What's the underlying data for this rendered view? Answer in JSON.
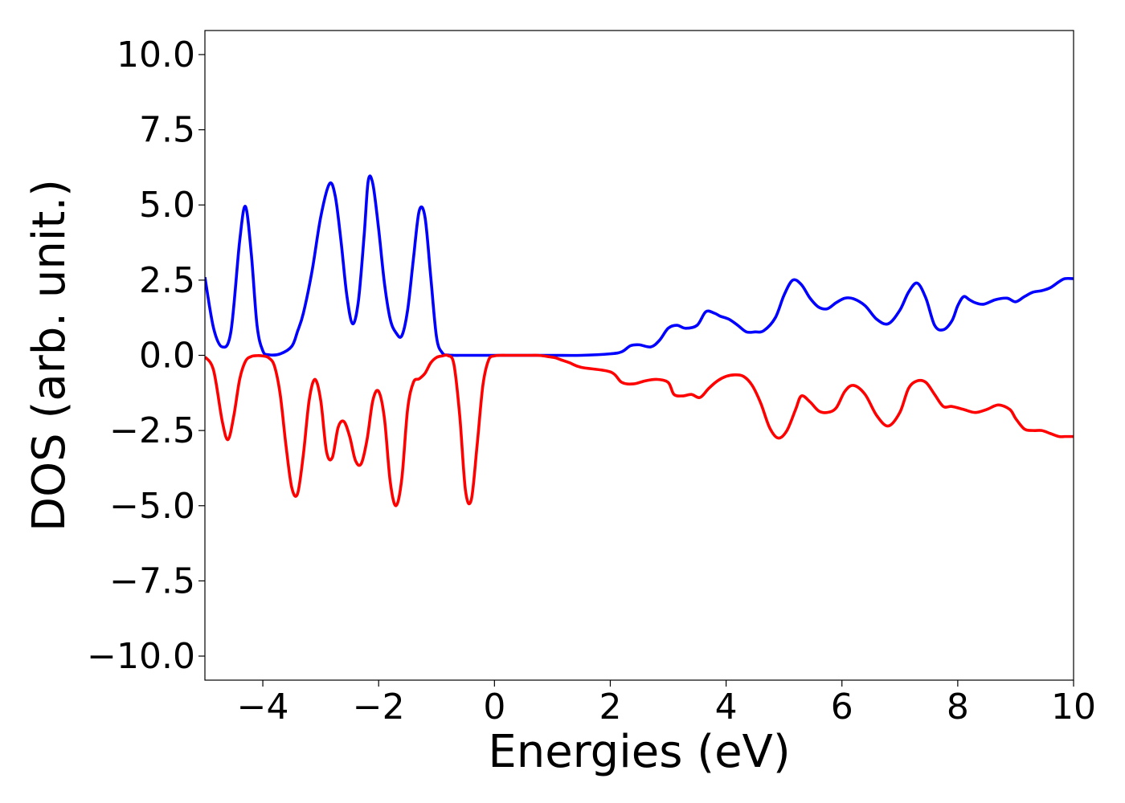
{
  "chart_data": {
    "type": "line",
    "title": "",
    "xlabel": "Energies (eV)",
    "ylabel": "DOS (arb. unit.)",
    "xlim": [
      -5,
      10
    ],
    "ylim": [
      -10.8,
      10.8
    ],
    "xticks": [
      -4,
      -2,
      0,
      2,
      4,
      6,
      8,
      10
    ],
    "xtick_labels": [
      "−4",
      "−2",
      "0",
      "2",
      "4",
      "6",
      "8",
      "10"
    ],
    "yticks": [
      10,
      7.5,
      5,
      2.5,
      0,
      -2.5,
      -5,
      -7.5,
      -10
    ],
    "ytick_labels": [
      "10.0",
      "7.5",
      "5.0",
      "2.5",
      "0.0",
      "−2.5",
      "−5.0",
      "−7.5",
      "−10.0"
    ],
    "grid": false,
    "legend": "none",
    "series": [
      {
        "color": "#0000ff",
        "x": [
          -5.0,
          -4.85,
          -4.7,
          -4.55,
          -4.4,
          -4.3,
          -4.2,
          -4.1,
          -4.0,
          -3.9,
          -3.7,
          -3.5,
          -3.4,
          -3.3,
          -3.15,
          -3.0,
          -2.85,
          -2.75,
          -2.65,
          -2.55,
          -2.45,
          -2.35,
          -2.25,
          -2.18,
          -2.1,
          -2.0,
          -1.9,
          -1.8,
          -1.7,
          -1.6,
          -1.5,
          -1.4,
          -1.3,
          -1.2,
          -1.1,
          -1.0,
          -0.9,
          -0.8,
          -0.7,
          -0.6,
          -0.5,
          -0.4,
          -0.3,
          -0.2,
          0.0,
          0.5,
          1.0,
          1.5,
          2.0,
          2.2,
          2.35,
          2.5,
          2.7,
          2.85,
          3.0,
          3.15,
          3.3,
          3.5,
          3.65,
          3.8,
          3.9,
          4.05,
          4.2,
          4.35,
          4.5,
          4.65,
          4.85,
          5.0,
          5.15,
          5.3,
          5.45,
          5.6,
          5.75,
          5.9,
          6.05,
          6.2,
          6.4,
          6.6,
          6.8,
          7.0,
          7.15,
          7.3,
          7.45,
          7.6,
          7.75,
          7.9,
          8.0,
          8.1,
          8.2,
          8.3,
          8.45,
          8.65,
          8.85,
          9.0,
          9.15,
          9.3,
          9.45,
          9.6,
          9.75,
          9.85,
          10.0
        ],
        "y": [
          2.6,
          0.9,
          0.28,
          0.8,
          3.8,
          4.95,
          3.4,
          1.0,
          0.15,
          0.02,
          0.05,
          0.3,
          0.8,
          1.4,
          2.8,
          4.6,
          5.7,
          5.3,
          3.8,
          2.0,
          1.05,
          1.8,
          4.0,
          5.8,
          5.7,
          4.2,
          2.4,
          1.2,
          0.75,
          0.65,
          1.5,
          3.2,
          4.8,
          4.6,
          2.6,
          0.6,
          0.08,
          0.01,
          0.0,
          0.0,
          0.0,
          0.0,
          0.0,
          0.0,
          0.0,
          0.0,
          0.0,
          0.0,
          0.05,
          0.12,
          0.32,
          0.35,
          0.28,
          0.5,
          0.9,
          1.0,
          0.9,
          1.0,
          1.45,
          1.4,
          1.3,
          1.2,
          1.0,
          0.78,
          0.78,
          0.82,
          1.25,
          2.0,
          2.5,
          2.35,
          1.9,
          1.6,
          1.55,
          1.75,
          1.9,
          1.88,
          1.65,
          1.2,
          1.05,
          1.5,
          2.1,
          2.4,
          1.9,
          1.0,
          0.85,
          1.15,
          1.65,
          1.95,
          1.85,
          1.75,
          1.7,
          1.85,
          1.9,
          1.78,
          1.95,
          2.1,
          2.15,
          2.25,
          2.45,
          2.55,
          2.55
        ]
      },
      {
        "color": "#ff0000",
        "x": [
          -5.0,
          -4.85,
          -4.7,
          -4.6,
          -4.5,
          -4.4,
          -4.3,
          -4.2,
          -4.1,
          -4.0,
          -3.9,
          -3.8,
          -3.7,
          -3.6,
          -3.5,
          -3.4,
          -3.3,
          -3.2,
          -3.1,
          -3.0,
          -2.9,
          -2.8,
          -2.7,
          -2.6,
          -2.5,
          -2.4,
          -2.3,
          -2.2,
          -2.1,
          -2.0,
          -1.9,
          -1.8,
          -1.7,
          -1.6,
          -1.5,
          -1.4,
          -1.3,
          -1.2,
          -1.1,
          -1.0,
          -0.9,
          -0.8,
          -0.7,
          -0.6,
          -0.5,
          -0.4,
          -0.3,
          -0.2,
          -0.1,
          0.0,
          0.1,
          0.2,
          0.3,
          0.4,
          0.5,
          0.6,
          0.65,
          0.75,
          0.85,
          0.95,
          1.05,
          1.15,
          1.3,
          1.5,
          2.0,
          2.2,
          2.4,
          2.6,
          2.8,
          3.0,
          3.1,
          3.25,
          3.4,
          3.55,
          3.7,
          3.85,
          4.0,
          4.15,
          4.3,
          4.45,
          4.6,
          4.75,
          4.9,
          5.05,
          5.2,
          5.3,
          5.45,
          5.6,
          5.75,
          5.9,
          6.05,
          6.2,
          6.4,
          6.6,
          6.8,
          7.0,
          7.15,
          7.3,
          7.45,
          7.6,
          7.75,
          7.9,
          8.1,
          8.3,
          8.5,
          8.7,
          8.9,
          9.0,
          9.15,
          9.3,
          9.45,
          9.6,
          9.75,
          9.85,
          10.0
        ],
        "y": [
          -0.05,
          -0.5,
          -2.2,
          -2.8,
          -2.0,
          -0.8,
          -0.2,
          -0.04,
          -0.01,
          -0.02,
          -0.08,
          -0.35,
          -1.3,
          -3.0,
          -4.4,
          -4.6,
          -3.3,
          -1.5,
          -0.8,
          -1.5,
          -3.2,
          -3.4,
          -2.4,
          -2.2,
          -2.7,
          -3.5,
          -3.6,
          -2.8,
          -1.5,
          -1.2,
          -2.1,
          -4.2,
          -5.0,
          -4.1,
          -1.8,
          -0.9,
          -0.78,
          -0.6,
          -0.25,
          -0.07,
          -0.02,
          -0.01,
          -0.3,
          -2.0,
          -4.5,
          -4.8,
          -3.0,
          -1.0,
          -0.15,
          -0.02,
          0.0,
          0.0,
          0.0,
          0.0,
          0.0,
          0.0,
          0.0,
          0.0,
          -0.02,
          -0.05,
          -0.08,
          -0.15,
          -0.25,
          -0.4,
          -0.55,
          -0.9,
          -0.95,
          -0.85,
          -0.8,
          -0.9,
          -1.3,
          -1.35,
          -1.3,
          -1.4,
          -1.1,
          -0.85,
          -0.7,
          -0.65,
          -0.7,
          -1.0,
          -1.6,
          -2.4,
          -2.75,
          -2.5,
          -1.8,
          -1.35,
          -1.55,
          -1.85,
          -1.9,
          -1.75,
          -1.2,
          -1.0,
          -1.3,
          -2.0,
          -2.35,
          -1.9,
          -1.1,
          -0.85,
          -0.9,
          -1.3,
          -1.7,
          -1.7,
          -1.8,
          -1.9,
          -1.8,
          -1.65,
          -1.8,
          -2.1,
          -2.45,
          -2.5,
          -2.5,
          -2.6,
          -2.7,
          -2.7,
          -2.7
        ]
      }
    ]
  }
}
